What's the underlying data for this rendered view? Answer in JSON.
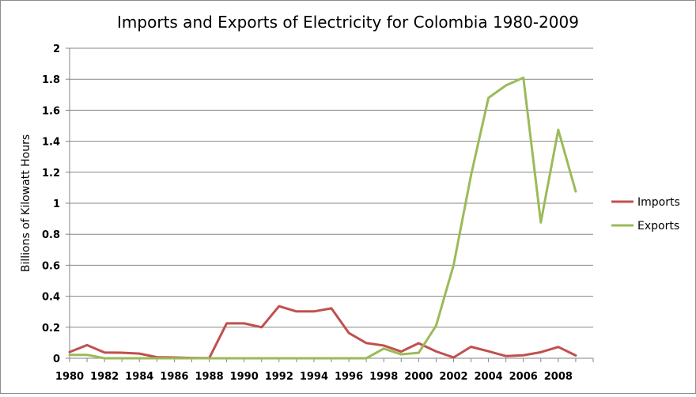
{
  "chart_data": {
    "type": "line",
    "title": "Imports and Exports of Electricity for Colombia 1980-2009",
    "xlabel": "",
    "ylabel": "Billions of Kilowatt Hours",
    "ylim": [
      0,
      2
    ],
    "yticks": [
      "0",
      "0.2",
      "0.4",
      "0.6",
      "0.8",
      "1",
      "1.2",
      "1.4",
      "1.6",
      "1.8",
      "2"
    ],
    "xticks": [
      "1980",
      "1982",
      "1984",
      "1986",
      "1988",
      "1990",
      "1992",
      "1994",
      "1996",
      "1998",
      "2000",
      "2002",
      "2004",
      "2006",
      "2008"
    ],
    "x": [
      1980,
      1981,
      1982,
      1983,
      1984,
      1985,
      1986,
      1987,
      1988,
      1989,
      1990,
      1991,
      1992,
      1993,
      1994,
      1995,
      1996,
      1997,
      1998,
      1999,
      2000,
      2001,
      2002,
      2003,
      2004,
      2005,
      2006,
      2007,
      2008,
      2009
    ],
    "grid": true,
    "legend_position": "right",
    "series": [
      {
        "name": "Imports",
        "color": "#c0504d",
        "values": [
          0.04,
          0.085,
          0.037,
          0.036,
          0.03,
          0.007,
          0.005,
          0.002,
          0.001,
          0.225,
          0.225,
          0.2,
          0.336,
          0.302,
          0.302,
          0.322,
          0.163,
          0.098,
          0.082,
          0.043,
          0.097,
          0.044,
          0.005,
          0.074,
          0.045,
          0.014,
          0.019,
          0.039,
          0.073,
          0.018
        ]
      },
      {
        "name": "Exports",
        "color": "#9bbb59",
        "values": [
          0.022,
          0.022,
          0.0,
          0.0,
          0.0,
          0.0,
          0.0,
          0.0,
          0.0,
          0.0,
          0.0,
          0.0,
          0.0,
          0.0,
          0.0,
          0.0,
          0.0,
          0.0,
          0.062,
          0.025,
          0.035,
          0.21,
          0.6,
          1.18,
          1.68,
          1.76,
          1.81,
          0.876,
          1.474,
          1.076
        ]
      }
    ]
  }
}
